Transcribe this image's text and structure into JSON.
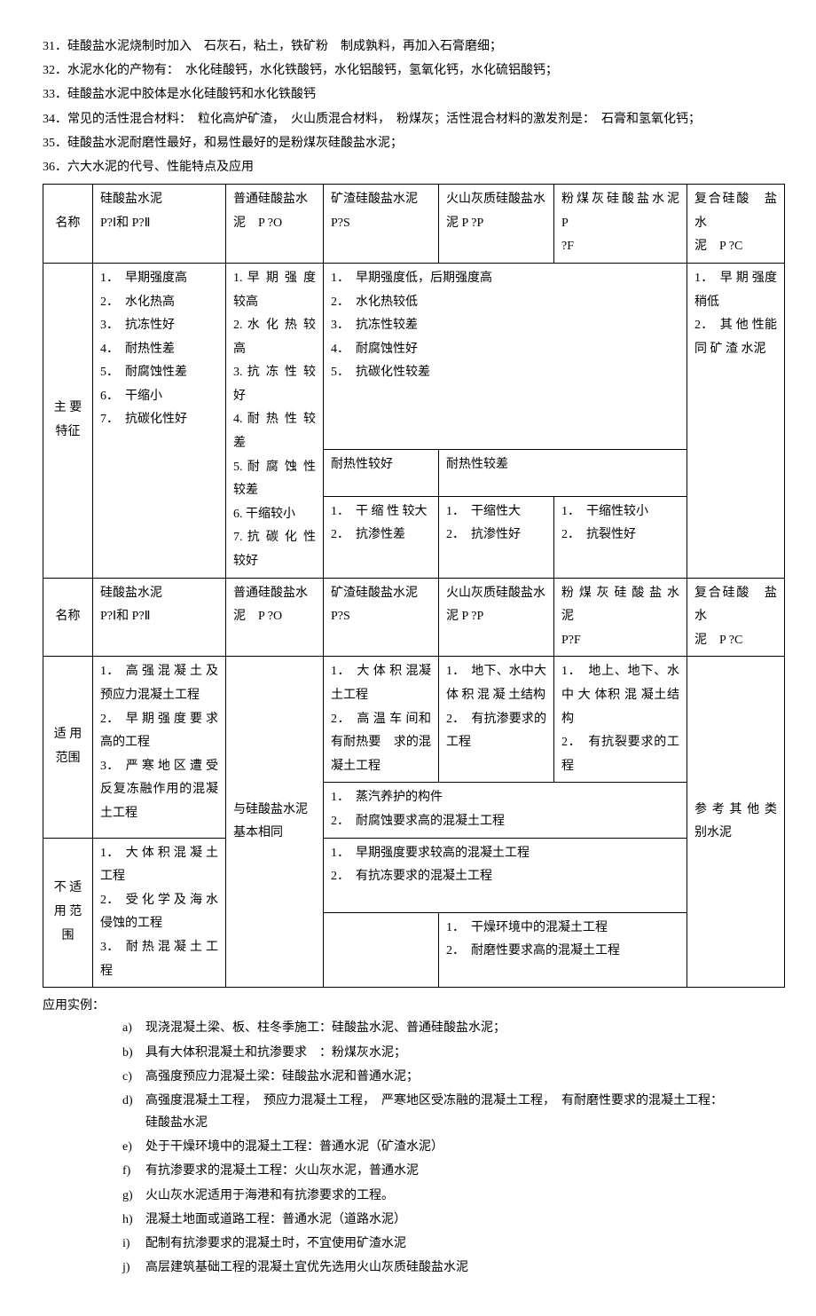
{
  "list": [
    {
      "n": "31．",
      "t": "硅酸盐水泥烧制时加入　石灰石，粘土，铁矿粉　制成孰料，再加入石膏磨细；"
    },
    {
      "n": "32．",
      "t": "水泥水化的产物有：　水化硅酸钙，水化铁酸钙，水化铝酸钙，氢氧化钙，水化硫铝酸钙；"
    },
    {
      "n": "33．",
      "t": "硅酸盐水泥中胶体是水化硅酸钙和水化铁酸钙"
    },
    {
      "n": "34．",
      "t": "常见的活性混合材料：　粒化高炉矿渣，　火山质混合材料，　粉煤灰；活性混合材料的激发剂是：　石膏和氢氧化钙；"
    },
    {
      "n": "35．",
      "t": "硅酸盐水泥耐磨性最好，和易性最好的是粉煤灰硅酸盐水泥；"
    },
    {
      "n": "36．",
      "t": "六大水泥的代号、性能特点及应用"
    }
  ],
  "row_name_label": "名称",
  "row1": {
    "c1a": "硅酸盐水泥",
    "c1b": "P?Ⅰ和 P?Ⅱ",
    "c2a": "普通硅酸盐水",
    "c2b": "泥　P ?O",
    "c3a": "矿渣硅酸盐水泥",
    "c3b": "P?S",
    "c4a": "火山灰质硅酸盐水",
    "c4b": "泥 P ?P",
    "c5a": "粉煤灰硅酸盐水泥　P",
    "c5b": "?F",
    "c6a": "复合硅酸　盐水",
    "c6b": "泥　P ?C"
  },
  "feature_label": "主 要\n特征",
  "feat": {
    "c1": "1．　早期强度高\n2．　水化热高\n3．　抗冻性好\n4．　耐热性差\n5．　耐腐蚀性差\n6．　干缩小\n7．　抗碳化性好",
    "c2": "1. 早 期 强 度较高\n2. 水 化 热 较高\n3. 抗 冻 性 较好\n4. 耐 热 性 较差\n5. 耐 腐 蚀 性较差\n6. 干缩较小\n7. 抗 碳 化 性较好",
    "top": "1．　早期强度低，后期强度高\n2．　水化热较低\n3．　抗冻性较差\n4．　耐腐蚀性好\n5．　抗碳化性较差",
    "heat3": "耐热性较好",
    "heat45": "耐热性较差",
    "b3": "1．　干 缩 性 较大\n2．　抗渗性差",
    "b4": "1．　干缩性大\n2．　抗渗性好",
    "b5": "1．　干缩性较小\n2．　抗裂性好",
    "c6": "1．　早 期 强度稍低\n2．　其 他 性能 同 矿 渣 水泥"
  },
  "row2": {
    "c1a": "硅酸盐水泥",
    "c1b": "P?Ⅰ和 P?Ⅱ",
    "c2a": "普通硅酸盐水",
    "c2b": "泥　P ?O",
    "c3a": "矿渣硅酸盐水泥",
    "c3b": "P?S",
    "c4a": "火山灰质硅酸盐水",
    "c4b": "泥 P ?P",
    "c5a": "粉 煤 灰 硅 酸 盐 水 泥",
    "c5b": "P?F",
    "c6a": "复合硅酸　盐水",
    "c6b": "泥　P ?C"
  },
  "fit_label": "适 用\n范围",
  "fit": {
    "c1": "1．　高 强 混 凝 土 及预应力混凝土工程\n2．　早 期 强 度 要 求高的工程\n3．　严 寒 地 区 遭 受反复冻融作用的混凝土工程",
    "c2": "与硅酸盐水泥基本相同",
    "c3": "1．　大 体 积 混凝土工程\n2．　高 温 车 间和 有耐热要　求的混凝土工程",
    "c4": "1．　地下、水中大 体 积 混 凝 土结构\n2．　有抗渗要求的工程",
    "c5": "1．　地上、地下、水 中 大 体积 混 凝土结构\n2．　有抗裂要求的工程",
    "steam": "1．　蒸汽养护的构件\n2．　耐腐蚀要求高的混凝土工程",
    "c6": "参 考 其 他 类别水泥"
  },
  "unfit_label": "不 适\n用 范\n围",
  "unfit": {
    "c1": "1．　大 体 积 混 凝 土工程\n2．　受 化 学 及 海 水侵蚀的工程\n3．　耐 热 混 凝 土 工程",
    "early": "1．　早期强度要求较高的混凝土工程\n2．　有抗冻要求的混凝土工程",
    "dry": "1．　干燥环境中的混凝土工程\n2．　耐磨性要求高的混凝土工程"
  },
  "post_label": "应用实例：",
  "letters": [
    {
      "l": "a)",
      "t": "现浇混凝土梁、板、柱冬季施工：硅酸盐水泥、普通硅酸盐水泥；"
    },
    {
      "l": "b)",
      "t": "具有大体积混凝土和抗渗要求　：粉煤灰水泥；"
    },
    {
      "l": "c)",
      "t": "高强度预应力混凝土梁：硅酸盐水泥和普通水泥；"
    },
    {
      "l": "d)",
      "t": "高强度混凝土工程，　预应力混凝土工程，　严寒地区受冻融的混凝土工程，　有耐磨性要求的混凝土工程：",
      "t2": "硅酸盐水泥"
    },
    {
      "l": "e)",
      "t": "处于干燥环境中的混凝土工程：普通水泥（矿渣水泥）"
    },
    {
      "l": "f)",
      "t": "有抗渗要求的混凝土工程：火山灰水泥，普通水泥"
    },
    {
      "l": "g)",
      "t": "火山灰水泥适用于海港和有抗渗要求的工程。"
    },
    {
      "l": "h)",
      "t": "混凝土地面或道路工程：普通水泥（道路水泥）"
    },
    {
      "l": "i)",
      "t": "配制有抗渗要求的混凝土时，不宜使用矿渣水泥"
    },
    {
      "l": "j)",
      "t": "高层建筑基础工程的混凝土宜优先选用火山灰质硅酸盐水泥"
    }
  ]
}
